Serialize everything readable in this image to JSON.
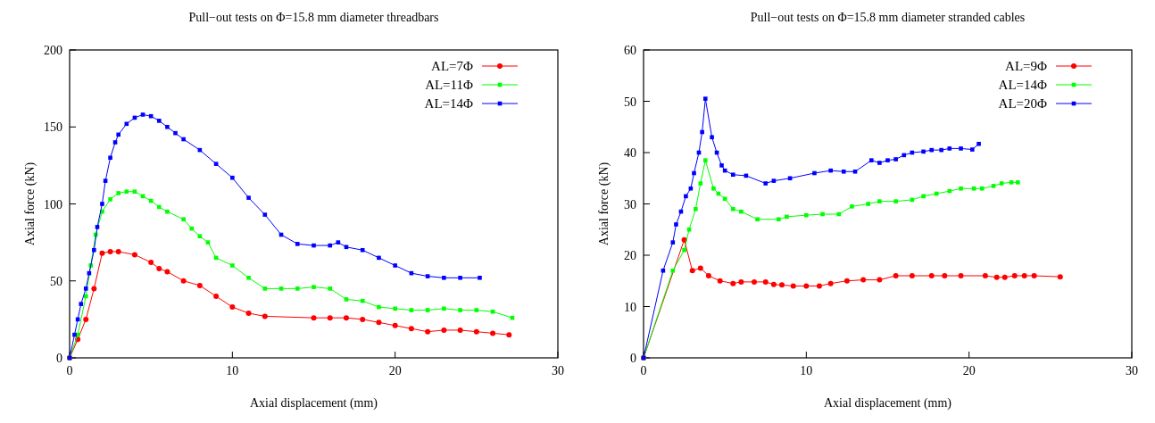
{
  "chart_data": [
    {
      "type": "line",
      "title": "Pull−out tests on Φ=15.8 mm diameter threadbars",
      "xlabel": "Axial displacement (mm)",
      "ylabel": "Axial force (kN)",
      "xlim": [
        0,
        30
      ],
      "xticks": [
        0,
        10,
        20,
        30
      ],
      "ylim": [
        0,
        200
      ],
      "yticks": [
        0,
        50,
        100,
        150,
        200
      ],
      "grid": false,
      "legend": "top right",
      "line_style": "solid",
      "series": [
        {
          "name": "AL=7Φ",
          "color": "#ff0000",
          "marker": "circle",
          "x": [
            0,
            0.5,
            1,
            1.5,
            2,
            2.5,
            3,
            4,
            5,
            5.5,
            6,
            7,
            8,
            9,
            10,
            11,
            12,
            15,
            16,
            17,
            18,
            19,
            20,
            21,
            22,
            23,
            24,
            25,
            26,
            27
          ],
          "values": [
            0,
            12,
            25,
            45,
            68,
            69,
            69,
            67,
            62,
            58,
            56,
            50,
            47,
            40,
            33,
            29,
            27,
            26,
            26,
            26,
            25,
            23,
            21,
            19,
            17,
            18,
            18,
            17,
            16,
            15
          ]
        },
        {
          "name": "AL=11Φ",
          "color": "#00ff00",
          "marker": "square",
          "x": [
            0,
            0.5,
            1,
            1.3,
            1.6,
            2,
            2.5,
            3,
            3.5,
            4,
            4.5,
            5,
            5.5,
            6,
            7,
            7.5,
            8,
            8.5,
            9,
            10,
            11,
            12,
            13,
            14,
            15,
            16,
            17,
            18,
            19,
            20,
            21,
            22,
            23,
            24,
            25,
            26,
            27.2
          ],
          "values": [
            0,
            15,
            40,
            60,
            80,
            95,
            103,
            107,
            108,
            108,
            105,
            102,
            98,
            95,
            90,
            84,
            79,
            75,
            65,
            60,
            52,
            45,
            45,
            45,
            46,
            45,
            38,
            37,
            33,
            32,
            31,
            31,
            32,
            31,
            31,
            30,
            26
          ]
        },
        {
          "name": "AL=14Φ",
          "color": "#0000ff",
          "marker": "square",
          "x": [
            0,
            0.3,
            0.5,
            0.7,
            1,
            1.2,
            1.5,
            1.7,
            2,
            2.2,
            2.5,
            2.8,
            3,
            3.5,
            4,
            4.5,
            5,
            5.5,
            6,
            6.5,
            7,
            8,
            9,
            10,
            11,
            12,
            13,
            14,
            15,
            16,
            16.5,
            17,
            18,
            19,
            20,
            21,
            22,
            23,
            24,
            25.2
          ],
          "values": [
            0,
            15,
            25,
            35,
            45,
            55,
            70,
            85,
            100,
            115,
            130,
            140,
            145,
            152,
            156,
            158,
            157,
            154,
            150,
            146,
            142,
            135,
            126,
            117,
            104,
            93,
            80,
            74,
            73,
            73,
            75,
            72,
            70,
            65,
            60,
            55,
            53,
            52,
            52,
            52
          ]
        }
      ]
    },
    {
      "type": "line",
      "title": "Pull−out tests on Φ=15.8 mm diameter stranded cables",
      "xlabel": "Axial displacement (mm)",
      "ylabel": "Axial force (kN)",
      "xlim": [
        0,
        30
      ],
      "xticks": [
        0,
        10,
        20,
        30
      ],
      "ylim": [
        0,
        60
      ],
      "yticks": [
        0,
        10,
        20,
        30,
        40,
        50,
        60
      ],
      "grid": false,
      "legend": "top right",
      "line_style": "solid",
      "series": [
        {
          "name": "AL=9Φ",
          "color": "#ff0000",
          "marker": "circle",
          "x": [
            0,
            2.5,
            3,
            3.5,
            4,
            4.7,
            5.5,
            6,
            6.8,
            7.5,
            8,
            8.5,
            9.2,
            10,
            10.8,
            11.5,
            12.5,
            13.5,
            14.5,
            15.5,
            16.5,
            17.7,
            18.5,
            19.5,
            21,
            21.7,
            22.2,
            22.8,
            23.4,
            24,
            25.6
          ],
          "values": [
            0,
            23,
            17,
            17.5,
            16,
            15,
            14.5,
            14.8,
            14.8,
            14.8,
            14.3,
            14.2,
            14,
            14,
            14,
            14.5,
            15,
            15.2,
            15.2,
            16,
            16,
            16,
            16,
            16,
            16,
            15.7,
            15.7,
            16,
            16,
            16,
            15.8
          ]
        },
        {
          "name": "AL=14Φ",
          "color": "#00ff00",
          "marker": "square",
          "x": [
            0,
            1.8,
            2.5,
            2.8,
            3.2,
            3.5,
            3.8,
            4.3,
            4.6,
            5,
            5.5,
            6,
            7,
            8.3,
            8.8,
            10,
            11,
            12,
            12.8,
            13.8,
            14.5,
            15.5,
            16.5,
            17.2,
            18,
            18.8,
            19.5,
            20.3,
            20.8,
            21.5,
            22,
            22.6,
            23
          ],
          "values": [
            0,
            17,
            21,
            25,
            29,
            34,
            38.5,
            33,
            32,
            31,
            29,
            28.5,
            27,
            27,
            27.5,
            27.8,
            28,
            28,
            29.5,
            30,
            30.5,
            30.5,
            30.8,
            31.5,
            32,
            32.5,
            33,
            33,
            33,
            33.5,
            34,
            34.2,
            34.2
          ]
        },
        {
          "name": "AL=20Φ",
          "color": "#0000ff",
          "marker": "square",
          "x": [
            0,
            1.2,
            1.8,
            2,
            2.3,
            2.6,
            2.9,
            3.1,
            3.4,
            3.6,
            3.8,
            4.2,
            4.5,
            4.8,
            5,
            5.5,
            6.3,
            7.5,
            8,
            9,
            10.5,
            11.5,
            12.3,
            13,
            14,
            14.5,
            15,
            15.5,
            16,
            16.5,
            17.2,
            17.7,
            18.3,
            18.8,
            19.5,
            20.2,
            20.6
          ],
          "values": [
            0,
            17,
            22.5,
            26,
            28.5,
            31.5,
            33,
            36,
            40,
            44,
            50.5,
            43,
            40,
            37.5,
            36.5,
            35.7,
            35.5,
            34,
            34.5,
            35,
            36,
            36.5,
            36.3,
            36.3,
            38.5,
            38,
            38.5,
            38.7,
            39.5,
            40,
            40.2,
            40.5,
            40.5,
            40.8,
            40.8,
            40.6,
            41.7
          ]
        }
      ]
    }
  ]
}
